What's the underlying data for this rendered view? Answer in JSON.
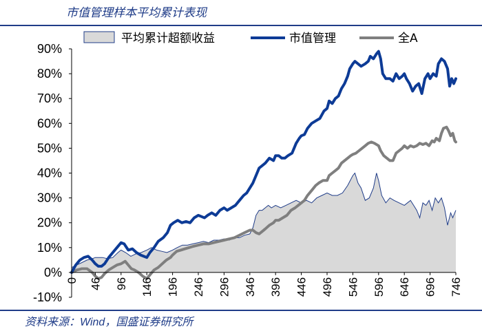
{
  "header": {
    "title": "市值管理样本平均累计表现"
  },
  "footer": {
    "source": "资料来源：Wind，国盛证券研究所"
  },
  "colors": {
    "blue": "#0d3b96",
    "gray": "#7f7f7f",
    "area": "#d9d9d9",
    "area_edge": "#1f3c88"
  },
  "chart_data": {
    "type": "line",
    "title": "市值管理样本平均累计表现",
    "xlabel": "",
    "ylabel": "",
    "xlim": [
      0,
      746
    ],
    "ylim": [
      -10,
      90
    ],
    "y_ticks": [
      -10,
      0,
      10,
      20,
      30,
      40,
      50,
      60,
      70,
      80,
      90
    ],
    "y_tick_labels": [
      "-10%",
      "0%",
      "10%",
      "20%",
      "30%",
      "40%",
      "50%",
      "60%",
      "70%",
      "80%",
      "90%"
    ],
    "x_ticks": [
      0,
      46,
      96,
      146,
      196,
      246,
      296,
      346,
      396,
      446,
      496,
      546,
      596,
      646,
      696,
      746
    ],
    "x_tick_labels": [
      "0",
      "46",
      "96",
      "146",
      "196",
      "246",
      "296",
      "346",
      "396",
      "446",
      "496",
      "546",
      "596",
      "646",
      "696",
      "746"
    ],
    "legend": {
      "position": "top",
      "entries": [
        "平均累计超额收益",
        "市值管理",
        "全A"
      ]
    },
    "series": [
      {
        "name": "平均累计超额收益",
        "style": "area",
        "points": [
          [
            0,
            2
          ],
          [
            10,
            3
          ],
          [
            20,
            4
          ],
          [
            30,
            5
          ],
          [
            40,
            5.5
          ],
          [
            46,
            6
          ],
          [
            60,
            6
          ],
          [
            70,
            5.5
          ],
          [
            80,
            6
          ],
          [
            90,
            8
          ],
          [
            96,
            9
          ],
          [
            105,
            8
          ],
          [
            115,
            6.5
          ],
          [
            125,
            7.5
          ],
          [
            135,
            8
          ],
          [
            146,
            9
          ],
          [
            155,
            10
          ],
          [
            165,
            9
          ],
          [
            175,
            8.5
          ],
          [
            185,
            8
          ],
          [
            196,
            9
          ],
          [
            205,
            10
          ],
          [
            215,
            11
          ],
          [
            225,
            11
          ],
          [
            235,
            11.5
          ],
          [
            246,
            12
          ],
          [
            256,
            12.5
          ],
          [
            266,
            12
          ],
          [
            276,
            13
          ],
          [
            286,
            13
          ],
          [
            296,
            13.5
          ],
          [
            306,
            13
          ],
          [
            316,
            14
          ],
          [
            326,
            14
          ],
          [
            336,
            15
          ],
          [
            346,
            15.5
          ],
          [
            352,
            18
          ],
          [
            358,
            23
          ],
          [
            364,
            25
          ],
          [
            370,
            25
          ],
          [
            376,
            26
          ],
          [
            382,
            27
          ],
          [
            388,
            26
          ],
          [
            396,
            27
          ],
          [
            406,
            26
          ],
          [
            416,
            27
          ],
          [
            426,
            28
          ],
          [
            436,
            29
          ],
          [
            446,
            28
          ],
          [
            456,
            29
          ],
          [
            466,
            28
          ],
          [
            476,
            30
          ],
          [
            486,
            31
          ],
          [
            496,
            32
          ],
          [
            506,
            31
          ],
          [
            516,
            31
          ],
          [
            526,
            32
          ],
          [
            536,
            35
          ],
          [
            546,
            39
          ],
          [
            550,
            40
          ],
          [
            556,
            36
          ],
          [
            562,
            34
          ],
          [
            570,
            29
          ],
          [
            578,
            30
          ],
          [
            586,
            34
          ],
          [
            592,
            40
          ],
          [
            596,
            37
          ],
          [
            602,
            31
          ],
          [
            610,
            28
          ],
          [
            618,
            30
          ],
          [
            626,
            29
          ],
          [
            636,
            28
          ],
          [
            646,
            27
          ],
          [
            652,
            28
          ],
          [
            658,
            29
          ],
          [
            664,
            27
          ],
          [
            670,
            25
          ],
          [
            676,
            22
          ],
          [
            682,
            28
          ],
          [
            688,
            27
          ],
          [
            694,
            29
          ],
          [
            700,
            25
          ],
          [
            706,
            30
          ],
          [
            712,
            28
          ],
          [
            718,
            30
          ],
          [
            724,
            26
          ],
          [
            730,
            19
          ],
          [
            736,
            24
          ],
          [
            740,
            22
          ],
          [
            746,
            25
          ]
        ]
      },
      {
        "name": "市值管理",
        "style": "line",
        "points": [
          [
            0,
            0
          ],
          [
            8,
            3
          ],
          [
            16,
            5
          ],
          [
            24,
            6
          ],
          [
            32,
            6.5
          ],
          [
            40,
            5
          ],
          [
            46,
            3.5
          ],
          [
            52,
            2.5
          ],
          [
            58,
            2.5
          ],
          [
            64,
            3.5
          ],
          [
            72,
            6
          ],
          [
            80,
            8
          ],
          [
            88,
            10
          ],
          [
            96,
            12
          ],
          [
            102,
            11.5
          ],
          [
            110,
            9
          ],
          [
            118,
            9.5
          ],
          [
            126,
            8
          ],
          [
            134,
            7
          ],
          [
            140,
            6.5
          ],
          [
            146,
            6
          ],
          [
            152,
            8
          ],
          [
            160,
            10
          ],
          [
            168,
            12.5
          ],
          [
            178,
            14
          ],
          [
            186,
            16
          ],
          [
            192,
            19
          ],
          [
            198,
            20
          ],
          [
            206,
            21
          ],
          [
            214,
            20
          ],
          [
            222,
            20.5
          ],
          [
            230,
            20
          ],
          [
            238,
            22
          ],
          [
            246,
            23
          ],
          [
            252,
            22.5
          ],
          [
            258,
            22
          ],
          [
            264,
            23
          ],
          [
            272,
            24
          ],
          [
            280,
            23
          ],
          [
            288,
            25
          ],
          [
            296,
            26
          ],
          [
            302,
            25
          ],
          [
            310,
            26
          ],
          [
            318,
            27
          ],
          [
            326,
            29
          ],
          [
            334,
            31
          ],
          [
            340,
            32
          ],
          [
            346,
            34
          ],
          [
            352,
            36
          ],
          [
            358,
            39
          ],
          [
            364,
            42
          ],
          [
            370,
            43
          ],
          [
            376,
            44
          ],
          [
            384,
            46
          ],
          [
            392,
            45
          ],
          [
            396,
            47
          ],
          [
            402,
            47
          ],
          [
            408,
            46
          ],
          [
            414,
            46
          ],
          [
            420,
            47
          ],
          [
            428,
            48
          ],
          [
            436,
            52
          ],
          [
            442,
            54
          ],
          [
            446,
            55
          ],
          [
            452,
            55.5
          ],
          [
            458,
            58
          ],
          [
            466,
            60
          ],
          [
            474,
            61
          ],
          [
            482,
            62
          ],
          [
            490,
            65
          ],
          [
            496,
            66
          ],
          [
            500,
            69
          ],
          [
            506,
            68
          ],
          [
            512,
            70
          ],
          [
            518,
            71
          ],
          [
            524,
            74
          ],
          [
            530,
            76
          ],
          [
            536,
            79
          ],
          [
            540,
            82
          ],
          [
            546,
            84
          ],
          [
            550,
            85
          ],
          [
            556,
            84
          ],
          [
            562,
            83
          ],
          [
            570,
            84
          ],
          [
            576,
            85
          ],
          [
            580,
            87
          ],
          [
            586,
            86
          ],
          [
            592,
            88
          ],
          [
            596,
            89
          ],
          [
            600,
            86
          ],
          [
            604,
            80
          ],
          [
            610,
            78
          ],
          [
            618,
            78
          ],
          [
            624,
            77
          ],
          [
            630,
            80
          ],
          [
            636,
            78
          ],
          [
            642,
            79
          ],
          [
            646,
            80
          ],
          [
            650,
            78
          ],
          [
            656,
            76
          ],
          [
            662,
            73
          ],
          [
            668,
            75
          ],
          [
            674,
            76
          ],
          [
            680,
            72
          ],
          [
            686,
            78
          ],
          [
            692,
            80
          ],
          [
            696,
            78
          ],
          [
            702,
            80
          ],
          [
            708,
            79
          ],
          [
            712,
            84
          ],
          [
            718,
            86
          ],
          [
            724,
            85
          ],
          [
            730,
            82
          ],
          [
            734,
            75
          ],
          [
            738,
            78
          ],
          [
            742,
            76
          ],
          [
            746,
            78
          ]
        ]
      },
      {
        "name": "全A",
        "style": "line",
        "points": [
          [
            0,
            0
          ],
          [
            10,
            1
          ],
          [
            20,
            1.5
          ],
          [
            30,
            1.5
          ],
          [
            40,
            0
          ],
          [
            46,
            -1.5
          ],
          [
            52,
            -2.5
          ],
          [
            58,
            -2
          ],
          [
            64,
            -0.5
          ],
          [
            72,
            1
          ],
          [
            80,
            2
          ],
          [
            88,
            3
          ],
          [
            96,
            3.5
          ],
          [
            104,
            4.5
          ],
          [
            110,
            3
          ],
          [
            116,
            1.5
          ],
          [
            122,
            1
          ],
          [
            130,
            0
          ],
          [
            138,
            -1.5
          ],
          [
            146,
            -2.5
          ],
          [
            152,
            -1
          ],
          [
            160,
            1
          ],
          [
            168,
            2
          ],
          [
            176,
            3.5
          ],
          [
            184,
            5
          ],
          [
            192,
            6
          ],
          [
            196,
            7
          ],
          [
            204,
            8.5
          ],
          [
            212,
            9
          ],
          [
            220,
            9.5
          ],
          [
            228,
            10
          ],
          [
            236,
            10.5
          ],
          [
            246,
            11
          ],
          [
            256,
            11.5
          ],
          [
            266,
            11.5
          ],
          [
            276,
            12
          ],
          [
            286,
            12.5
          ],
          [
            296,
            13
          ],
          [
            306,
            13.5
          ],
          [
            316,
            14
          ],
          [
            326,
            15
          ],
          [
            336,
            16
          ],
          [
            346,
            17
          ],
          [
            352,
            17
          ],
          [
            358,
            16
          ],
          [
            364,
            15.5
          ],
          [
            370,
            16.5
          ],
          [
            376,
            17.5
          ],
          [
            384,
            19
          ],
          [
            392,
            20
          ],
          [
            396,
            21
          ],
          [
            402,
            21
          ],
          [
            410,
            22
          ],
          [
            418,
            23
          ],
          [
            426,
            25
          ],
          [
            434,
            26
          ],
          [
            440,
            27
          ],
          [
            446,
            28
          ],
          [
            452,
            29
          ],
          [
            458,
            31
          ],
          [
            466,
            33
          ],
          [
            474,
            35
          ],
          [
            480,
            36
          ],
          [
            488,
            37
          ],
          [
            496,
            37
          ],
          [
            500,
            39
          ],
          [
            506,
            40
          ],
          [
            512,
            41
          ],
          [
            518,
            42
          ],
          [
            524,
            44
          ],
          [
            530,
            45
          ],
          [
            536,
            46
          ],
          [
            542,
            47
          ],
          [
            546,
            47.5
          ],
          [
            552,
            48
          ],
          [
            558,
            49
          ],
          [
            564,
            50
          ],
          [
            570,
            51
          ],
          [
            576,
            52
          ],
          [
            582,
            52.5
          ],
          [
            588,
            52
          ],
          [
            596,
            51
          ],
          [
            600,
            49
          ],
          [
            606,
            47
          ],
          [
            612,
            46
          ],
          [
            618,
            45
          ],
          [
            624,
            45
          ],
          [
            630,
            48
          ],
          [
            636,
            49
          ],
          [
            642,
            50
          ],
          [
            646,
            51
          ],
          [
            652,
            50
          ],
          [
            658,
            51
          ],
          [
            664,
            50.5
          ],
          [
            670,
            51
          ],
          [
            676,
            52
          ],
          [
            682,
            51.5
          ],
          [
            688,
            52
          ],
          [
            694,
            51
          ],
          [
            700,
            53
          ],
          [
            704,
            52.5
          ],
          [
            708,
            54
          ],
          [
            714,
            53
          ],
          [
            718,
            56
          ],
          [
            722,
            58
          ],
          [
            728,
            58.5
          ],
          [
            732,
            57
          ],
          [
            736,
            55
          ],
          [
            740,
            56
          ],
          [
            744,
            53
          ],
          [
            746,
            52.5
          ]
        ]
      }
    ]
  }
}
